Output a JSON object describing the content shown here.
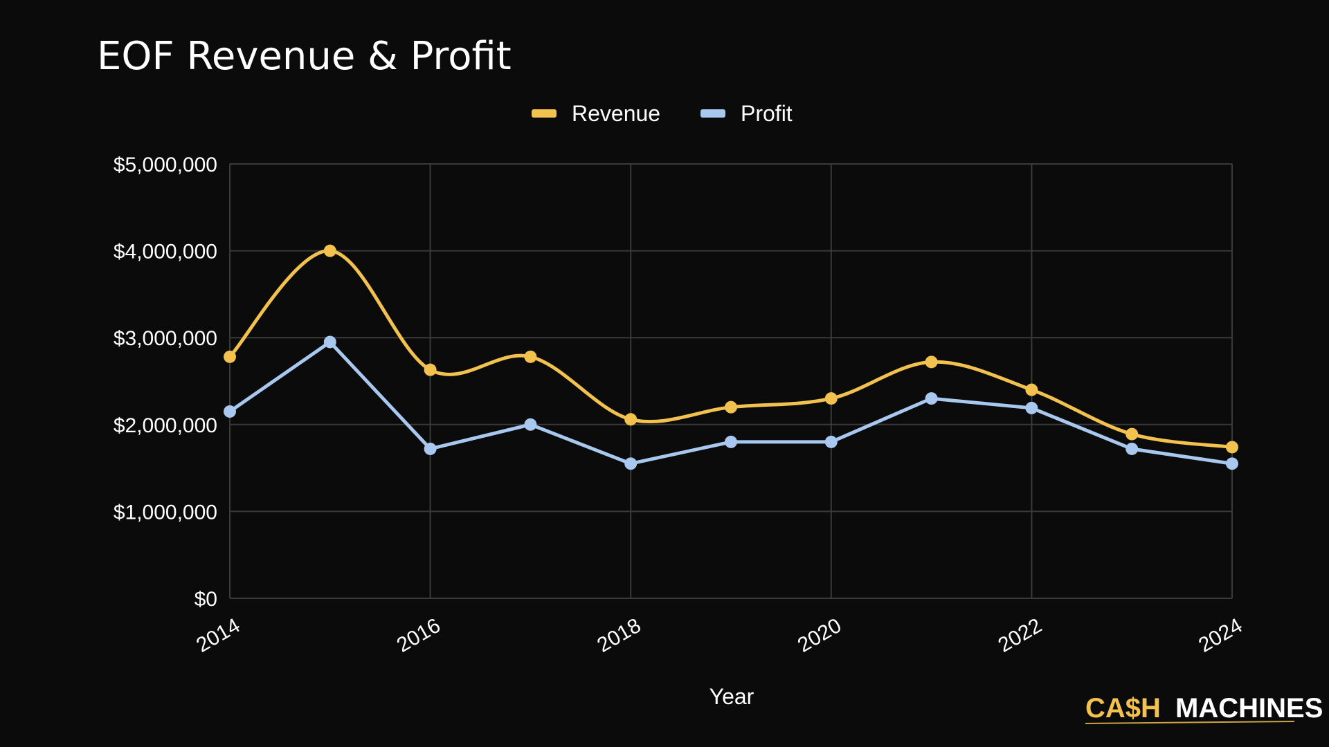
{
  "chart_data": {
    "type": "line",
    "title": "EOF Revenue & Profit",
    "xlabel": "Year",
    "ylabel": "",
    "x": [
      2014,
      2015,
      2016,
      2017,
      2018,
      2019,
      2020,
      2021,
      2022,
      2023,
      2024
    ],
    "x_tick_labels": [
      "2014",
      "2016",
      "2018",
      "2020",
      "2022",
      "2024"
    ],
    "x_tick_values": [
      2014,
      2016,
      2018,
      2020,
      2022,
      2024
    ],
    "y_tick_labels": [
      "$0",
      "$1,000,000",
      "$2,000,000",
      "$3,000,000",
      "$4,000,000",
      "$5,000,000"
    ],
    "y_tick_values": [
      0,
      1000000,
      2000000,
      3000000,
      4000000,
      5000000
    ],
    "ylim": [
      0,
      5000000
    ],
    "xlim": [
      2014,
      2024
    ],
    "grid": true,
    "legend_position": "top-center",
    "series": [
      {
        "name": "Revenue",
        "color": "#f2c14e",
        "smooth": true,
        "values": [
          2780000,
          4000000,
          2630000,
          2780000,
          2060000,
          2200000,
          2300000,
          2720000,
          2400000,
          1890000,
          1740000
        ]
      },
      {
        "name": "Profit",
        "color": "#a9c8f0",
        "smooth": false,
        "values": [
          2150000,
          2950000,
          1720000,
          2000000,
          1550000,
          1800000,
          1800000,
          2300000,
          2190000,
          1720000,
          1550000
        ]
      }
    ]
  },
  "brand": {
    "part1": "CA$H",
    "part2": "MACHINES",
    "accent_color": "#f2c14e",
    "text_color": "#ffffff"
  },
  "colors": {
    "background": "#0b0b0b",
    "grid": "#3a3a3a",
    "text": "#ffffff"
  }
}
